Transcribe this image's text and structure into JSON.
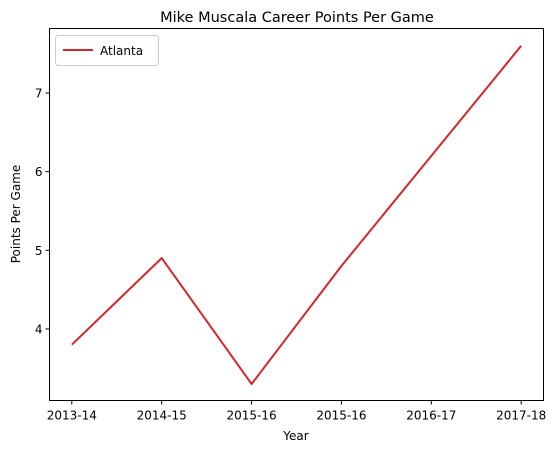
{
  "chart_data": {
    "type": "line",
    "title": "Mike Muscala Career Points Per Game",
    "xlabel": "Year",
    "ylabel": "Points Per Game",
    "categories": [
      "2013-14",
      "2014-15",
      "2015-16",
      "2015-16",
      "2016-17",
      "2017-18"
    ],
    "series": [
      {
        "name": "Atlanta",
        "color": "#d62728",
        "values": [
          3.8,
          4.9,
          3.3,
          4.8,
          6.2,
          7.6
        ]
      }
    ],
    "ylim": [
      3.09,
      7.82
    ],
    "yticks": [
      4,
      5,
      6,
      7
    ],
    "grid": false,
    "legend": "upper-left"
  }
}
